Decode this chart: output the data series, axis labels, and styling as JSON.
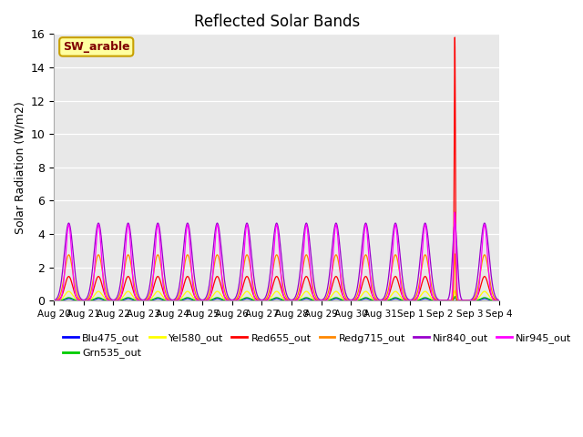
{
  "title": "Reflected Solar Bands",
  "ylabel": "Solar Radiation (W/m2)",
  "xlabel": "",
  "plot_bg_color": "#e8e8e8",
  "fig_bg_color": "#ffffff",
  "annotation_text": "SW_arable",
  "annotation_bg": "#ffffa0",
  "annotation_border": "#c8a000",
  "annotation_text_color": "#800000",
  "ylim": [
    0,
    16
  ],
  "yticks": [
    0,
    2,
    4,
    6,
    8,
    10,
    12,
    14,
    16
  ],
  "series": [
    {
      "label": "Blu475_out",
      "color": "#0000ff",
      "peak": 0.12,
      "sigma": 0.12
    },
    {
      "label": "Grn535_out",
      "color": "#00cc00",
      "peak": 0.18,
      "sigma": 0.12
    },
    {
      "label": "Yel580_out",
      "color": "#ffff00",
      "peak": 0.55,
      "sigma": 0.13
    },
    {
      "label": "Red655_out",
      "color": "#ff0000",
      "peak": 1.45,
      "sigma": 0.13
    },
    {
      "label": "Redg715_out",
      "color": "#ff8800",
      "peak": 2.75,
      "sigma": 0.14
    },
    {
      "label": "Nir840_out",
      "color": "#9900cc",
      "peak": 4.65,
      "sigma": 0.15
    },
    {
      "label": "Nir945_out",
      "color": "#ff00ff",
      "peak": 4.55,
      "sigma": 0.1
    }
  ],
  "n_days": 15,
  "spike_day": 13,
  "spike_values": [
    0.2,
    0.25,
    0.6,
    15.8,
    2.8,
    4.65,
    5.3
  ],
  "spike_sigmas": [
    0.03,
    0.03,
    0.03,
    0.02,
    0.03,
    0.08,
    0.04
  ],
  "date_labels": [
    "Aug 20",
    "Aug 21",
    "Aug 22",
    "Aug 23",
    "Aug 24",
    "Aug 25",
    "Aug 26",
    "Aug 27",
    "Aug 28",
    "Aug 29",
    "Aug 30",
    "Aug 31",
    "Sep 1",
    "Sep 2",
    "Sep 3",
    "Sep 4"
  ],
  "legend_ncol": 6,
  "legend_fontsize": 8
}
